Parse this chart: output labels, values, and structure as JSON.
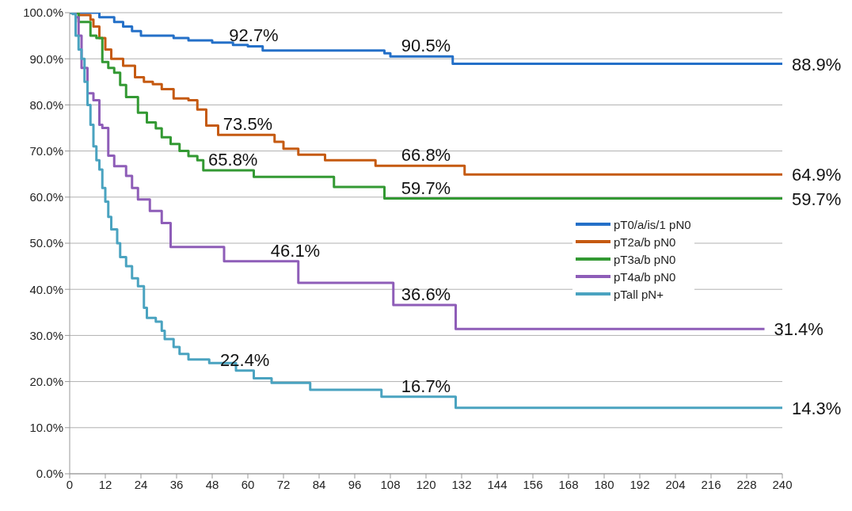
{
  "chart_data": {
    "type": "step",
    "xlim": [
      0,
      240
    ],
    "xticks": [
      0,
      12,
      24,
      36,
      48,
      60,
      72,
      84,
      96,
      108,
      120,
      132,
      144,
      156,
      168,
      180,
      192,
      204,
      216,
      228,
      240
    ],
    "ylim": [
      0,
      100
    ],
    "yticks": [
      {
        "value": 0,
        "label": "0.0%"
      },
      {
        "value": 10,
        "label": "10.0%"
      },
      {
        "value": 20,
        "label": "20.0%"
      },
      {
        "value": 30,
        "label": "30.0%"
      },
      {
        "value": 40,
        "label": "40.0%"
      },
      {
        "value": 50,
        "label": "50.0%"
      },
      {
        "value": 60,
        "label": "60.0%"
      },
      {
        "value": 70,
        "label": "70.0%"
      },
      {
        "value": 80,
        "label": "80.0%"
      },
      {
        "value": 90,
        "label": "90.0%"
      },
      {
        "value": 100,
        "label": "100.0%"
      }
    ],
    "grid": "y",
    "legend": "right",
    "marker": "none",
    "line_style": "solid",
    "series": [
      {
        "name": "pT0/a/is/1 pN0",
        "color": "#2470c8",
        "x": [
          0,
          10,
          15,
          18,
          21,
          24,
          35,
          40,
          48,
          55,
          60,
          65,
          106,
          108,
          129,
          240
        ],
        "values": [
          100,
          99,
          98,
          97,
          96,
          95,
          94.5,
          94,
          93.5,
          93,
          92.7,
          91.8,
          91.2,
          90.5,
          88.9,
          88.9
        ]
      },
      {
        "name": "pT2a/b pN0",
        "color": "#c55a11",
        "x": [
          0,
          3,
          7,
          8,
          10,
          12,
          14,
          18,
          22,
          25,
          28,
          31,
          35,
          40,
          43,
          46,
          50,
          69,
          72,
          77,
          86,
          103,
          133,
          240
        ],
        "values": [
          100,
          99.5,
          98.5,
          97,
          94.5,
          92,
          90,
          88.5,
          86,
          85,
          84.5,
          83.4,
          81.4,
          81,
          79,
          75.5,
          73.5,
          72,
          70.5,
          69.2,
          68,
          66.8,
          64.9,
          64.9
        ]
      },
      {
        "name": "pT3a/b pN0",
        "color": "#339933",
        "x": [
          0,
          3,
          7,
          9,
          11,
          13,
          15,
          17,
          19,
          23,
          26,
          29,
          31,
          34,
          37,
          40,
          43,
          45,
          62,
          89,
          106,
          240
        ],
        "values": [
          100,
          98,
          95,
          94.5,
          89.3,
          88,
          87,
          84.3,
          81.7,
          78.3,
          76.2,
          74.9,
          73,
          71.5,
          70,
          68.9,
          68,
          65.8,
          64.4,
          62.2,
          59.7,
          59.7
        ]
      },
      {
        "name": "pT4a/b pN0",
        "color": "#8e5db8",
        "x": [
          0,
          2,
          3,
          4,
          6,
          8,
          10,
          11,
          13,
          15,
          19,
          21,
          23,
          27,
          31,
          34,
          52,
          77,
          109,
          130,
          234
        ],
        "values": [
          100,
          99,
          95,
          88,
          82.5,
          81,
          75.7,
          75,
          69,
          66.7,
          64.6,
          62,
          59.5,
          57,
          54.4,
          49.2,
          46.1,
          41.4,
          36.6,
          31.4,
          31.4
        ]
      },
      {
        "name": "pTall pN+",
        "color": "#4aa3c0",
        "x": [
          0,
          1,
          2,
          3,
          4,
          5,
          6,
          7,
          8,
          9,
          10,
          11,
          12,
          13,
          14,
          16,
          17,
          19,
          21,
          23,
          25,
          26,
          29,
          31,
          32,
          35,
          37,
          40,
          47,
          56,
          62,
          68,
          81,
          105,
          130,
          240
        ],
        "values": [
          100,
          99.7,
          95,
          92,
          90,
          85,
          80,
          75.7,
          71,
          68,
          66,
          62,
          59,
          55.7,
          53,
          50,
          47,
          45,
          42.4,
          40.7,
          36,
          33.8,
          33,
          31,
          29.2,
          27.5,
          26,
          24.8,
          24,
          22.4,
          20.7,
          19.7,
          18.2,
          16.7,
          14.3,
          14.3
        ]
      }
    ],
    "annotations": [
      {
        "text": "92.7%",
        "x": 62,
        "y": 92.7
      },
      {
        "text": "90.5%",
        "x": 120,
        "y": 90.5
      },
      {
        "text": "88.9%",
        "x": 240,
        "y": 88.9
      },
      {
        "text": "73.5%",
        "x": 60,
        "y": 73.5
      },
      {
        "text": "66.8%",
        "x": 120,
        "y": 66.8
      },
      {
        "text": "64.9%",
        "x": 240,
        "y": 64.9
      },
      {
        "text": "65.8%",
        "x": 55,
        "y": 65.8
      },
      {
        "text": "59.7%",
        "x": 120,
        "y": 59.7
      },
      {
        "text": "59.7%",
        "x": 240,
        "y": 59.7
      },
      {
        "text": "46.1%",
        "x": 76,
        "y": 46.1
      },
      {
        "text": "36.6%",
        "x": 120,
        "y": 36.6
      },
      {
        "text": "31.4%",
        "x": 234,
        "y": 31.4
      },
      {
        "text": "22.4%",
        "x": 59,
        "y": 22.4
      },
      {
        "text": "16.7%",
        "x": 120,
        "y": 16.7
      },
      {
        "text": "14.3%",
        "x": 240,
        "y": 14.3
      }
    ]
  }
}
